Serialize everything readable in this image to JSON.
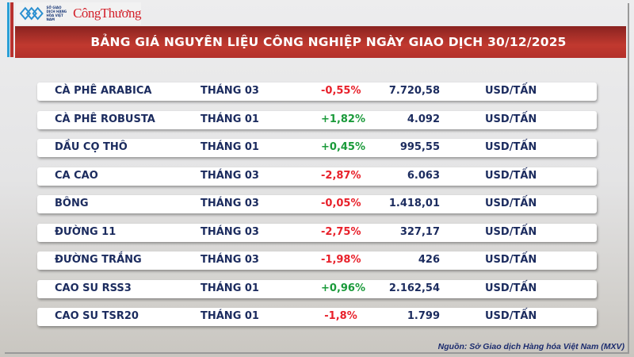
{
  "logo": {
    "exchange_text": "SỞ GIAO DỊCH HÀNG HÓA VIỆT NAM",
    "brand_text": "CôngThương"
  },
  "title": "BẢNG GIÁ NGUYÊN LIỆU CÔNG NGHIỆP NGÀY GIAO DỊCH 30/12/2025",
  "colors": {
    "header": "#b8322f",
    "positive": "#1a9a3a",
    "negative": "#e8202a",
    "text": "#1b2b5e"
  },
  "rows": [
    {
      "name": "CÀ PHÊ ARABICA",
      "month": "THÁNG 03",
      "change": "-0,55%",
      "price": "7.720,58",
      "unit": "USD/TẤN"
    },
    {
      "name": "CÀ PHÊ ROBUSTA",
      "month": "THÁNG 01",
      "change": "+1,82%",
      "price": "4.092",
      "unit": "USD/TẤN"
    },
    {
      "name": "DẦU CỌ THÔ",
      "month": "THÁNG 01",
      "change": "+0,45%",
      "price": "995,55",
      "unit": "USD/TẤN"
    },
    {
      "name": "CA CAO",
      "month": "THÁNG 03",
      "change": "-2,87%",
      "price": "6.063",
      "unit": "USD/TẤN"
    },
    {
      "name": "BÔNG",
      "month": "THÁNG 03",
      "change": "-0,05%",
      "price": "1.418,01",
      "unit": "USD/TẤN"
    },
    {
      "name": "ĐƯỜNG 11",
      "month": "THÁNG 03",
      "change": "-2,75%",
      "price": "327,17",
      "unit": "USD/TẤN"
    },
    {
      "name": "ĐƯỜNG TRẮNG",
      "month": "THÁNG 03",
      "change": "-1,98%",
      "price": "426",
      "unit": "USD/TẤN"
    },
    {
      "name": "CAO SU RSS3",
      "month": "THÁNG 01",
      "change": "+0,96%",
      "price": "2.162,54",
      "unit": "USD/TẤN"
    },
    {
      "name": "CAO SU TSR20",
      "month": "THÁNG 01",
      "change": "-1,8%",
      "price": "1.799",
      "unit": "USD/TẤN"
    }
  ],
  "source": "Nguồn: Sở Giao dịch Hàng hóa Việt Nam (MXV)"
}
